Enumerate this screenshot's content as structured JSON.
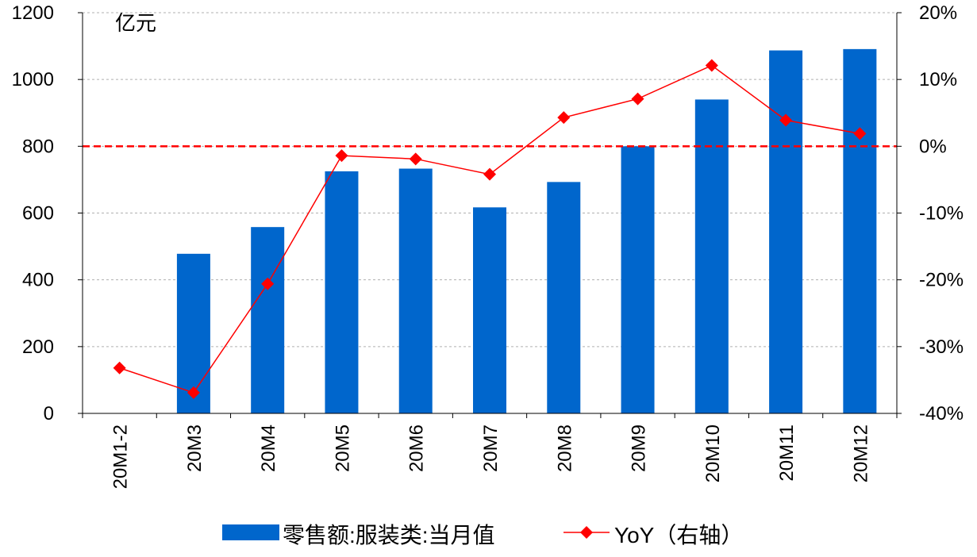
{
  "chart_data": {
    "type": "bar",
    "unit_label": "亿元",
    "categories": [
      "20M1-2",
      "20M3",
      "20M4",
      "20M5",
      "20M6",
      "20M7",
      "20M8",
      "20M9",
      "20M10",
      "20M11",
      "20M12"
    ],
    "series": [
      {
        "name": "零售额:服装类:当月值",
        "type": "bar",
        "axis": "left",
        "color": "#0066CC",
        "values": [
          null,
          478,
          558,
          725,
          733,
          617,
          693,
          800,
          940,
          1087,
          1091
        ]
      },
      {
        "name": "YoY（右轴）",
        "type": "line",
        "axis": "right",
        "color": "#FF0000",
        "values": [
          -33.2,
          -36.9,
          -20.6,
          -1.4,
          -1.9,
          -4.2,
          4.3,
          7.1,
          12.1,
          3.9,
          1.9
        ]
      }
    ],
    "y_left": {
      "min": 0,
      "max": 1200,
      "ticks": [
        0,
        200,
        400,
        600,
        800,
        1000,
        1200
      ]
    },
    "y_right": {
      "min": -40,
      "max": 20,
      "ticks": [
        -40,
        -30,
        -20,
        -10,
        0,
        10,
        20
      ],
      "tick_labels": [
        "-40%",
        "-30%",
        "-20%",
        "-10%",
        "0%",
        "10%",
        "20%"
      ]
    },
    "reference_line": {
      "axis": "right",
      "value": 0,
      "color": "#FF0000",
      "style": "dashed"
    },
    "grid": true,
    "legend_position": "bottom"
  }
}
